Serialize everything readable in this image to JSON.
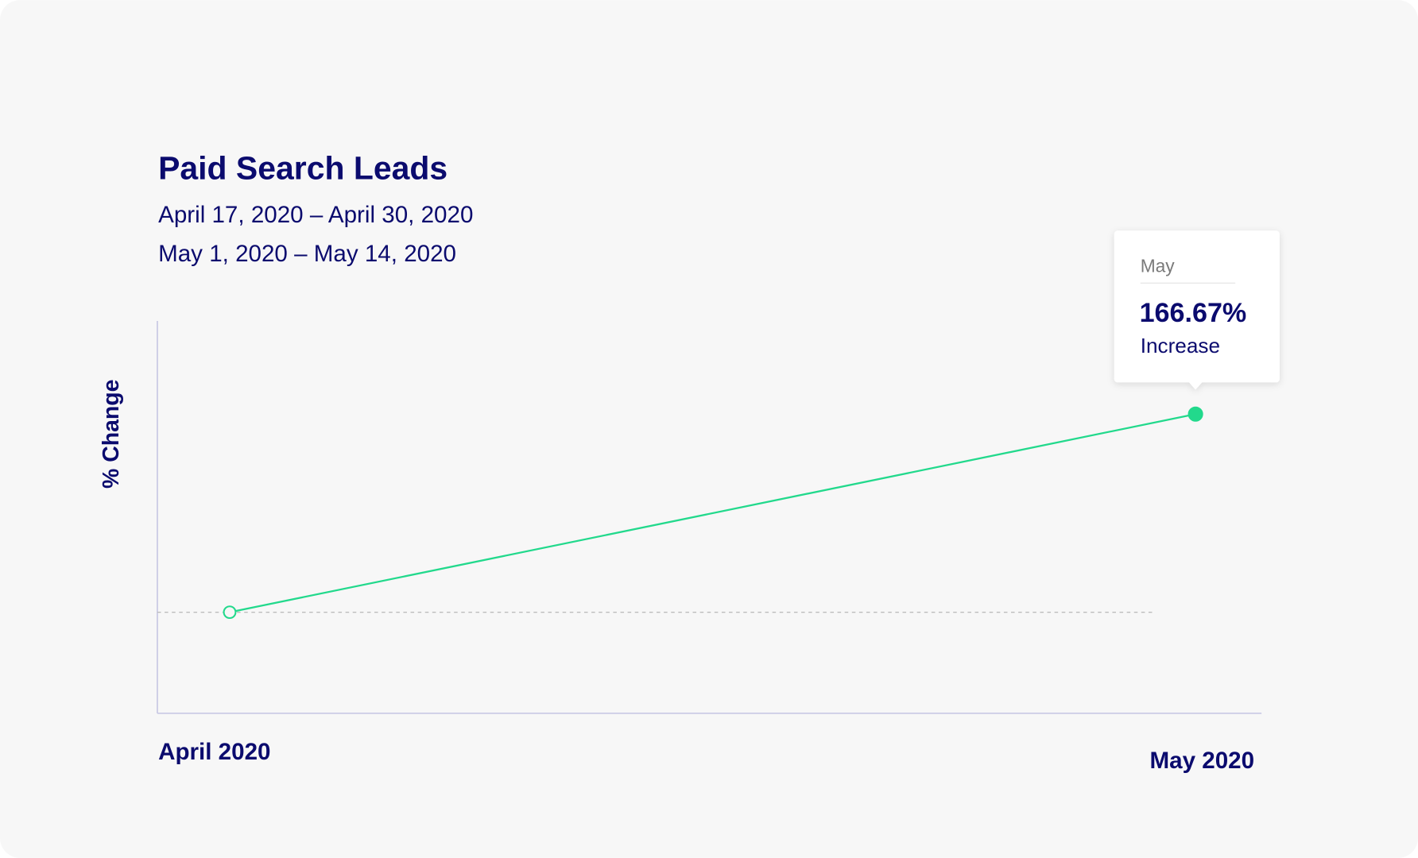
{
  "chart_data": {
    "type": "line",
    "title": "Paid Search Leads",
    "subtitles": [
      "April 17, 2020 – April 30, 2020",
      "May 1, 2020 – May 14, 2020"
    ],
    "y_label": "% Change",
    "categories": [
      "April 2020",
      "May 2020"
    ],
    "values": [
      0,
      166.67
    ],
    "value_labels": [
      null,
      "166.67%"
    ],
    "color": "#22d98c",
    "ylim": [
      -85,
      245
    ],
    "tooltip": {
      "title": "May",
      "caption": "Increase"
    }
  }
}
